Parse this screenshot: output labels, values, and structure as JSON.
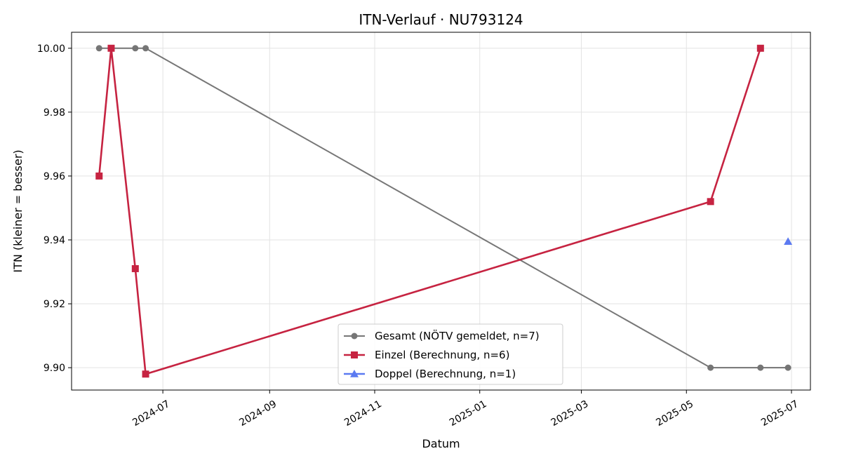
{
  "chart_data": {
    "type": "line",
    "title": "ITN-Verlauf · NU793124",
    "xlabel": "Datum",
    "ylabel": "ITN  (kleiner = besser)",
    "x_type": "date",
    "xlim": [
      "2024-05-09",
      "2025-07-12"
    ],
    "ylim": [
      9.893,
      10.005
    ],
    "x_ticks": [
      "2024-07-01",
      "2024-09-01",
      "2024-11-01",
      "2025-01-01",
      "2025-03-01",
      "2025-05-01",
      "2025-07-01"
    ],
    "x_tick_labels": [
      "2024-07",
      "2024-09",
      "2024-11",
      "2025-01",
      "2025-03",
      "2025-05",
      "2025-07"
    ],
    "y_ticks": [
      9.9,
      9.92,
      9.94,
      9.96,
      9.98,
      10.0
    ],
    "y_tick_labels": [
      "9.90",
      "9.92",
      "9.94",
      "9.96",
      "9.98",
      "10.00"
    ],
    "grid": true,
    "legend_position": "bottom-center",
    "series": [
      {
        "name": "Gesamt (NÖTV gemeldet, n=7)",
        "color": "#555555",
        "marker": "circle",
        "x": [
          "2024-05-25",
          "2024-06-01",
          "2024-06-15",
          "2024-06-21",
          "2025-05-15",
          "2025-06-13",
          "2025-06-29"
        ],
        "y": [
          10.0,
          10.0,
          10.0,
          10.0,
          9.9,
          9.9,
          9.9
        ]
      },
      {
        "name": "Einzel (Berechnung, n=6)",
        "color": "#c62341",
        "marker": "square",
        "x": [
          "2024-05-25",
          "2024-06-01",
          "2024-06-15",
          "2024-06-21",
          "2025-05-15",
          "2025-06-13"
        ],
        "y": [
          9.96,
          10.0,
          9.931,
          9.898,
          9.952,
          10.0
        ]
      },
      {
        "name": "Doppel (Berechnung, n=1)",
        "color": "#4a6cf0",
        "marker": "triangle",
        "x": [
          "2025-06-29"
        ],
        "y": [
          9.9395
        ]
      }
    ]
  }
}
